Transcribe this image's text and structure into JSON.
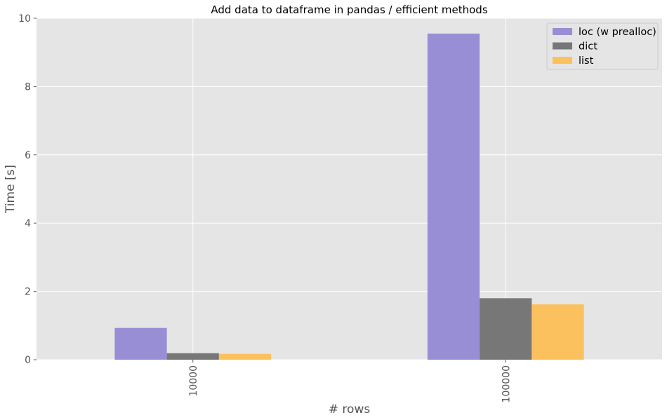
{
  "chart_data": {
    "type": "bar",
    "title": "Add data to dataframe in pandas / efficient methods",
    "xlabel": "# rows",
    "ylabel": "Time [s]",
    "categories": [
      "10000",
      "100000"
    ],
    "series": [
      {
        "name": "loc (w prealloc)",
        "values": [
          0.93,
          9.55
        ],
        "color": "#988ED5"
      },
      {
        "name": "dict",
        "values": [
          0.19,
          1.8
        ],
        "color": "#777777"
      },
      {
        "name": "list",
        "values": [
          0.17,
          1.62
        ],
        "color": "#FBC15E"
      }
    ],
    "ylim": [
      0,
      10
    ],
    "yticks": [
      "0",
      "2",
      "4",
      "6",
      "8",
      "10"
    ],
    "grid": true,
    "legend_position": "top-right",
    "colors": {
      "plot_background": "#E5E5E5",
      "grid": "#FFFFFF",
      "text": "#555555"
    }
  }
}
